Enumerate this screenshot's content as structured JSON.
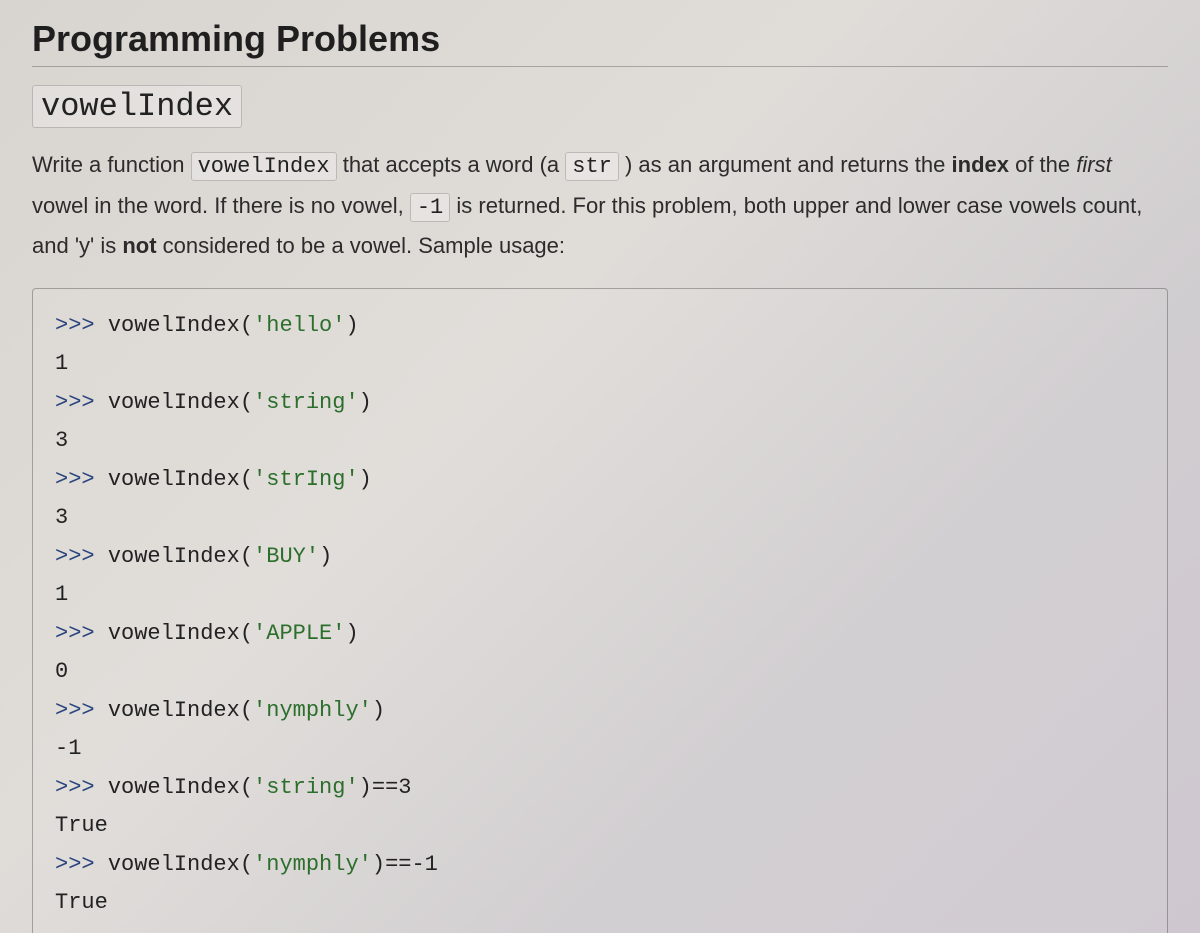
{
  "title": "Programming Problems",
  "function_name": "vowelIndex",
  "description": {
    "prefix": "Write a function ",
    "code1": "vowelIndex",
    "mid1": " that accepts a word (a ",
    "code2": "str",
    "mid2": " ) as an argument and returns the ",
    "bold1": "index",
    "mid3": " of the ",
    "italic1": "first",
    "mid4": " vowel in the word.  If there is no vowel, ",
    "code3": "-1",
    "mid5": " is returned.  For this problem, both upper and lower case vowels count, and 'y' is ",
    "bold2": "not",
    "suffix": " considered to be a vowel.  Sample usage:"
  },
  "code": {
    "prompt": ">>> ",
    "lines": [
      {
        "type": "call",
        "fn": "vowelIndex(",
        "arg": "'hello'",
        "tail": ")"
      },
      {
        "type": "out",
        "text": "1"
      },
      {
        "type": "call",
        "fn": "vowelIndex(",
        "arg": "'string'",
        "tail": ")"
      },
      {
        "type": "out",
        "text": "3"
      },
      {
        "type": "call",
        "fn": "vowelIndex(",
        "arg": "'strIng'",
        "tail": ")"
      },
      {
        "type": "out",
        "text": "3"
      },
      {
        "type": "call",
        "fn": "vowelIndex(",
        "arg": "'BUY'",
        "tail": ")"
      },
      {
        "type": "out",
        "text": "1"
      },
      {
        "type": "call",
        "fn": "vowelIndex(",
        "arg": "'APPLE'",
        "tail": ")"
      },
      {
        "type": "out",
        "text": "0"
      },
      {
        "type": "call",
        "fn": "vowelIndex(",
        "arg": "'nymphly'",
        "tail": ")"
      },
      {
        "type": "out",
        "text": "-1"
      },
      {
        "type": "call",
        "fn": "vowelIndex(",
        "arg": "'string'",
        "tail": ")==3"
      },
      {
        "type": "out",
        "text": "True"
      },
      {
        "type": "call",
        "fn": "vowelIndex(",
        "arg": "'nymphly'",
        "tail": ")==-1"
      },
      {
        "type": "out",
        "text": "True"
      }
    ]
  },
  "colors": {
    "prompt": "#2a457e",
    "string": "#2c6f2c",
    "text": "#2a2a2a",
    "border": "rgba(0,0,0,0.28)"
  },
  "font": {
    "body_family": "Segoe UI, Helvetica Neue, Arial, sans-serif",
    "mono_family": "Consolas, Menlo, Courier New, monospace",
    "title_size_pt": 27,
    "subtitle_size_pt": 24,
    "body_size_pt": 17,
    "code_size_pt": 17
  }
}
